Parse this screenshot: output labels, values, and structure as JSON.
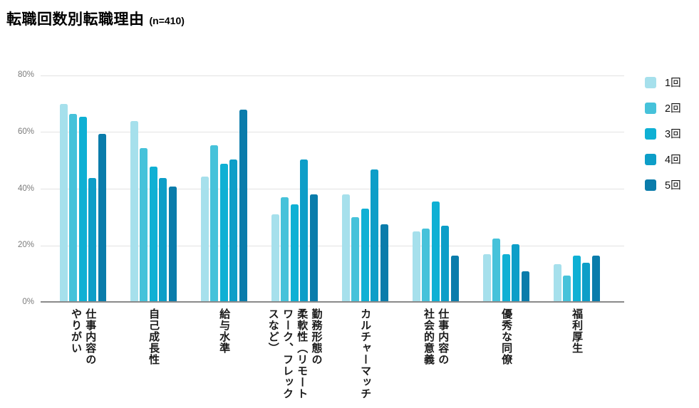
{
  "header": {
    "title": "転職回数別転職理由",
    "sample_note": "(n=410)"
  },
  "colors": {
    "palette": [
      "#a6e0ec",
      "#46c2da",
      "#0fb0d4",
      "#0d9ec8",
      "#0a7cab"
    ],
    "gridline": "#e3e3e3",
    "axis_line": "#8a8a8a",
    "tick_label": "#7b7b7b",
    "category_label": "#1a1a1a"
  },
  "chart_data": {
    "type": "bar",
    "title": "転職回数別転職理由 (n=410)",
    "xlabel": "",
    "ylabel": "",
    "ylim": [
      0,
      80
    ],
    "yticks": [
      "0%",
      "20%",
      "40%",
      "60%",
      "80%"
    ],
    "grid": true,
    "legend_position": "right",
    "legend_entries": [
      "1回",
      "2回",
      "3回",
      "4回",
      "5回"
    ],
    "categories": [
      "仕事内容のやりがい",
      "自己成長性",
      "給与水準",
      "勤務形態の柔軟性（リモートワーク、フレックスなど）",
      "カルチャーマッチ",
      "仕事内容の社会的意義",
      "優秀な同僚",
      "福利厚生"
    ],
    "category_display_lines": [
      [
        "仕事内容の",
        "やりがい"
      ],
      [
        "自己成長性"
      ],
      [
        "給与水準"
      ],
      [
        "勤務形態の",
        "柔軟性（リモート",
        "ワーク、フレック",
        "スなど）"
      ],
      [
        "カルチャーマッチ"
      ],
      [
        "仕事内容の",
        "社会的意義"
      ],
      [
        "優秀な同僚"
      ],
      [
        "福利厚生"
      ]
    ],
    "series": [
      {
        "name": "1回",
        "color": "#a6e0ec",
        "values": [
          69.5,
          63.5,
          44,
          30.5,
          37.5,
          24.5,
          16.5,
          13
        ]
      },
      {
        "name": "2回",
        "color": "#46c2da",
        "values": [
          66,
          54,
          55,
          36.5,
          29.5,
          25.5,
          22,
          9
        ]
      },
      {
        "name": "3回",
        "color": "#0fb0d4",
        "values": [
          65,
          47.5,
          48.5,
          34,
          32.5,
          35,
          16.5,
          16
        ]
      },
      {
        "name": "4回",
        "color": "#0d9ec8",
        "values": [
          43.5,
          43.5,
          50,
          50,
          46.5,
          26.5,
          20,
          13.5
        ]
      },
      {
        "name": "5回",
        "color": "#0a7cab",
        "values": [
          59,
          40.5,
          67.5,
          37.5,
          27,
          16,
          10.5,
          16
        ]
      }
    ]
  }
}
